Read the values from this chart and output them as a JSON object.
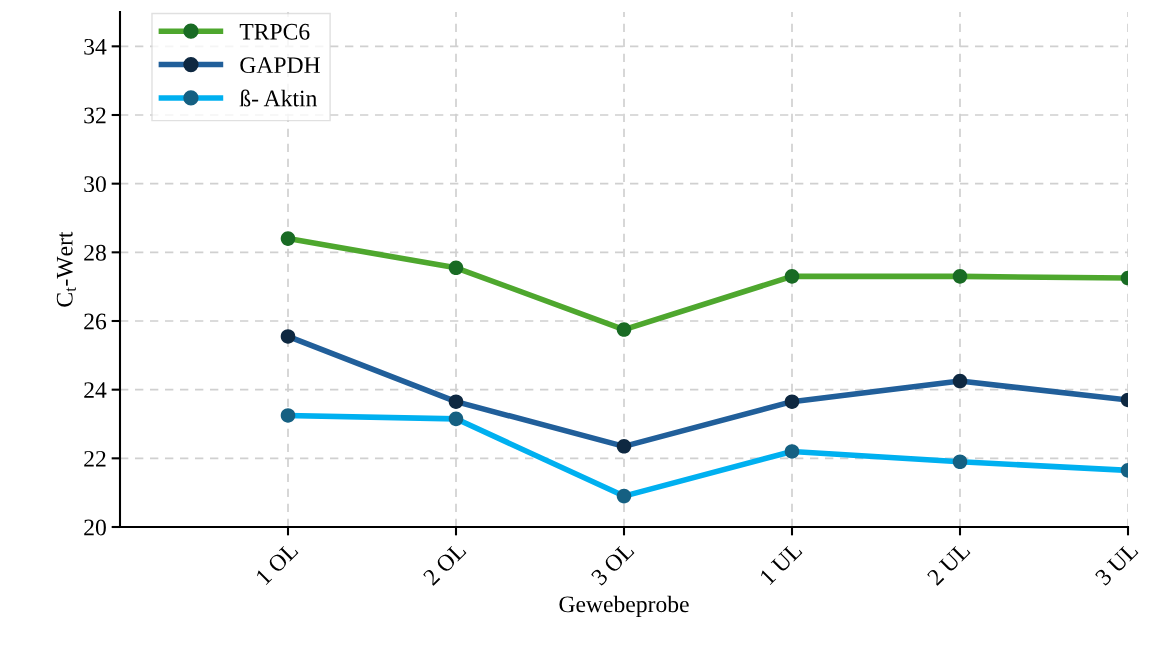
{
  "chart_data": {
    "type": "line",
    "xlabel": "Gewebeprobe",
    "ylabel": "C$_{t}$-Wert",
    "categories": [
      "1 OL",
      "2 OL",
      "3 OL",
      "1 UL",
      "2 UL",
      "3 UL"
    ],
    "series": [
      {
        "name": "TRPC6",
        "color": "#4ea72e",
        "colors": [
          "#196b24",
          "#196b24",
          "#196b24",
          "#196b24",
          "#196b24",
          "#196b24"
        ],
        "values": [
          28.4,
          27.55,
          25.75,
          27.3,
          27.3,
          27.25
        ]
      },
      {
        "name": "GAPDH",
        "color": "#215f9a",
        "colors": [
          "#0e2841",
          "#0e2841",
          "#0e2841",
          "#0e2841",
          "#0e2841",
          "#0e2841"
        ],
        "values": [
          25.55,
          23.65,
          22.35,
          23.65,
          24.25,
          23.7
        ]
      },
      {
        "name": "ß- Aktin",
        "color": "#00b0f0",
        "colors": [
          "#156082",
          "#156082",
          "#156082",
          "#156082",
          "#156082",
          "#156082"
        ],
        "values": [
          23.25,
          23.15,
          20.9,
          22.2,
          21.9,
          21.65
        ]
      }
    ],
    "ylim": [
      20,
      35
    ],
    "yticks": [
      20,
      22,
      24,
      26,
      28,
      30,
      32,
      34
    ],
    "grid": true,
    "legend": "top left",
    "marker": "circle",
    "line_style": "solid"
  }
}
